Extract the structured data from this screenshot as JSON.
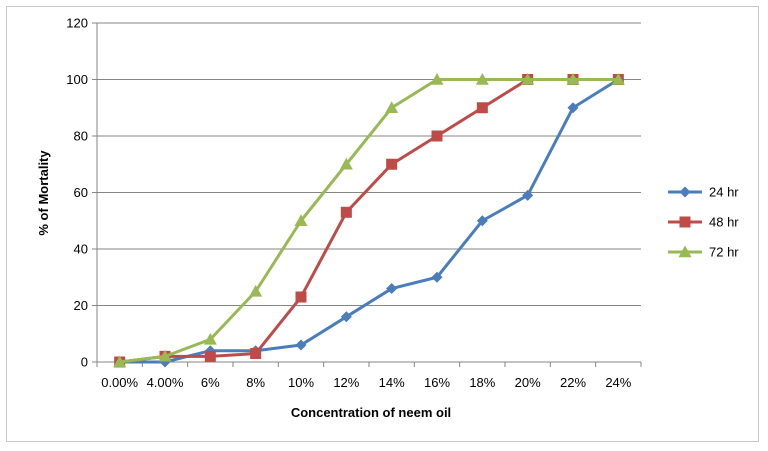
{
  "chart_data": {
    "type": "line",
    "categories": [
      "0.00%",
      "4.00%",
      "6%",
      "8%",
      "10%",
      "12%",
      "14%",
      "16%",
      "18%",
      "20%",
      "22%",
      "24%"
    ],
    "xlabel": "Concentration of neem oil",
    "ylabel": "% of Mortality",
    "ylim": [
      0,
      120
    ],
    "yticks": [
      0,
      20,
      40,
      60,
      80,
      100,
      120
    ],
    "grid": true,
    "legend": "right",
    "series": [
      {
        "name": "24 hr",
        "color": "#4a7ebb",
        "marker": "diamond",
        "values": [
          0,
          0,
          4,
          4,
          6,
          16,
          26,
          30,
          50,
          59,
          90,
          100
        ]
      },
      {
        "name": "48 hr",
        "color": "#be4b48",
        "marker": "square",
        "values": [
          0,
          2,
          2,
          3,
          23,
          53,
          70,
          80,
          90,
          100,
          100,
          100
        ]
      },
      {
        "name": "72 hr",
        "color": "#98b954",
        "marker": "triangle",
        "values": [
          0,
          2,
          8,
          25,
          50,
          70,
          90,
          100,
          100,
          100,
          100,
          100
        ]
      }
    ]
  }
}
